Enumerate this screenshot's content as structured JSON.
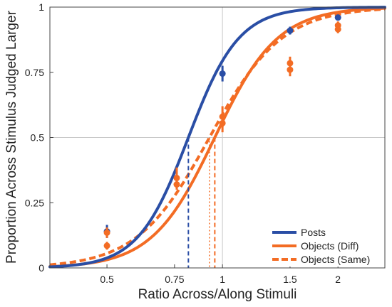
{
  "chart_data": {
    "type": "scatter",
    "xlabel": "Ratio Across/Along Stimuli",
    "ylabel": "Proportion Across Stimulus Judged Larger",
    "x_scale": "log",
    "xlim": [
      0.355,
      2.65
    ],
    "ylim": [
      0,
      1
    ],
    "x_ticks": [
      {
        "value": 0.5,
        "label": "0.5"
      },
      {
        "value": 0.75,
        "label": "0.75"
      },
      {
        "value": 1,
        "label": "1"
      },
      {
        "value": 1.5,
        "label": "1.5"
      },
      {
        "value": 2,
        "label": "2"
      }
    ],
    "y_ticks": [
      {
        "value": 0,
        "label": "0"
      },
      {
        "value": 0.25,
        "label": "0.25"
      },
      {
        "value": 0.5,
        "label": "0.5"
      },
      {
        "value": 0.75,
        "label": "0.75"
      },
      {
        "value": 1,
        "label": "1"
      }
    ],
    "reference_lines": {
      "x": 1,
      "y": 0.5
    },
    "legend_position": "bottom-right",
    "series": [
      {
        "name": "Posts",
        "color": "#2a4ea5",
        "dash": "solid",
        "pse": 0.815,
        "slope": 6.6,
        "points": [
          {
            "x": 0.5,
            "y": 0.14,
            "err": 0.025
          },
          {
            "x": 1,
            "y": 0.745,
            "err": 0.03
          },
          {
            "x": 1.5,
            "y": 0.91,
            "err": 0.015
          },
          {
            "x": 2,
            "y": 0.96,
            "err": 0.01
          }
        ]
      },
      {
        "name": "Objects (Diff)",
        "color": "#f36c24",
        "dash": "solid",
        "pse": 0.955,
        "slope": 5.3,
        "points": [
          {
            "x": 0.5,
            "y": 0.085,
            "err": 0.015
          },
          {
            "x": 0.76,
            "y": 0.32,
            "err": 0.02
          },
          {
            "x": 1,
            "y": 0.555,
            "err": 0.035
          },
          {
            "x": 1.5,
            "y": 0.76,
            "err": 0.025
          },
          {
            "x": 2,
            "y": 0.915,
            "err": 0.015
          }
        ]
      },
      {
        "name": "Objects (Same)",
        "color": "#f36c24",
        "dash": "dashed",
        "pse": 0.925,
        "slope": 4.6,
        "points": [
          {
            "x": 0.5,
            "y": 0.135,
            "err": 0.02
          },
          {
            "x": 0.76,
            "y": 0.345,
            "err": 0.04
          },
          {
            "x": 1,
            "y": 0.58,
            "err": 0.04
          },
          {
            "x": 1.5,
            "y": 0.785,
            "err": 0.025
          },
          {
            "x": 2,
            "y": 0.93,
            "err": 0.015
          }
        ]
      }
    ]
  }
}
